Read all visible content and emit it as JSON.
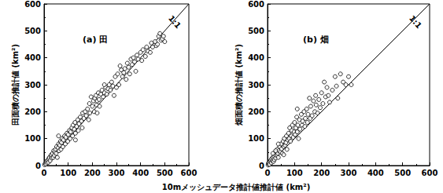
{
  "xlabel": "10mメッシュデータ推計値推計値 (km²)",
  "chart_data": [
    {
      "type": "scatter",
      "title": "(a) 田",
      "ylabel": "田面積の推計値 (km²)",
      "xlim": [
        0,
        600
      ],
      "xticks": [
        0,
        100,
        200,
        300,
        400,
        500,
        600
      ],
      "ylim": [
        0,
        600
      ],
      "yticks": [
        0,
        100,
        200,
        300,
        400,
        500,
        600
      ],
      "color": "#000000",
      "marker": "circle_open",
      "reference_line": {
        "label": "1:1",
        "x": [
          0,
          600
        ],
        "y": [
          0,
          600
        ]
      },
      "points": [
        [
          2,
          3
        ],
        [
          5,
          8
        ],
        [
          8,
          5
        ],
        [
          10,
          15
        ],
        [
          12,
          10
        ],
        [
          15,
          20
        ],
        [
          18,
          12
        ],
        [
          20,
          25
        ],
        [
          22,
          30
        ],
        [
          25,
          18
        ],
        [
          28,
          35
        ],
        [
          30,
          40
        ],
        [
          32,
          28
        ],
        [
          35,
          45
        ],
        [
          38,
          30
        ],
        [
          40,
          55
        ],
        [
          42,
          38
        ],
        [
          45,
          50
        ],
        [
          48,
          60
        ],
        [
          50,
          45
        ],
        [
          52,
          70
        ],
        [
          55,
          30
        ],
        [
          58,
          65
        ],
        [
          60,
          80
        ],
        [
          62,
          55
        ],
        [
          65,
          75
        ],
        [
          68,
          90
        ],
        [
          70,
          60
        ],
        [
          72,
          85
        ],
        [
          75,
          100
        ],
        [
          78,
          70
        ],
        [
          80,
          95
        ],
        [
          85,
          110
        ],
        [
          88,
          80
        ],
        [
          90,
          105
        ],
        [
          95,
          120
        ],
        [
          98,
          90
        ],
        [
          100,
          115
        ],
        [
          105,
          130
        ],
        [
          108,
          100
        ],
        [
          110,
          125
        ],
        [
          115,
          140
        ],
        [
          118,
          110
        ],
        [
          120,
          150
        ],
        [
          125,
          135
        ],
        [
          128,
          160
        ],
        [
          130,
          120
        ],
        [
          135,
          145
        ],
        [
          140,
          170
        ],
        [
          142,
          130
        ],
        [
          145,
          155
        ],
        [
          150,
          180
        ],
        [
          155,
          165
        ],
        [
          158,
          140
        ],
        [
          160,
          195
        ],
        [
          165,
          175
        ],
        [
          170,
          200
        ],
        [
          175,
          185
        ],
        [
          180,
          210
        ],
        [
          185,
          170
        ],
        [
          188,
          230
        ],
        [
          190,
          195
        ],
        [
          195,
          255
        ],
        [
          200,
          220
        ],
        [
          205,
          240
        ],
        [
          208,
          200
        ],
        [
          210,
          250
        ],
        [
          215,
          260
        ],
        [
          218,
          225
        ],
        [
          220,
          240
        ],
        [
          225,
          270
        ],
        [
          228,
          245
        ],
        [
          230,
          220
        ],
        [
          235,
          265
        ],
        [
          240,
          280
        ],
        [
          245,
          255
        ],
        [
          250,
          270
        ],
        [
          255,
          290
        ],
        [
          260,
          265
        ],
        [
          265,
          285
        ],
        [
          270,
          300
        ],
        [
          275,
          280
        ],
        [
          280,
          310
        ],
        [
          285,
          295
        ],
        [
          290,
          260
        ],
        [
          295,
          330
        ],
        [
          300,
          290
        ],
        [
          305,
          340
        ],
        [
          310,
          300
        ],
        [
          315,
          370
        ],
        [
          320,
          355
        ],
        [
          325,
          330
        ],
        [
          330,
          345
        ],
        [
          335,
          360
        ],
        [
          340,
          320
        ],
        [
          345,
          380
        ],
        [
          350,
          365
        ],
        [
          355,
          340
        ],
        [
          360,
          395
        ],
        [
          365,
          375
        ],
        [
          370,
          400
        ],
        [
          375,
          385
        ],
        [
          380,
          350
        ],
        [
          385,
          410
        ],
        [
          390,
          395
        ],
        [
          400,
          420
        ],
        [
          405,
          390
        ],
        [
          410,
          430
        ],
        [
          420,
          405
        ],
        [
          425,
          440
        ],
        [
          430,
          425
        ],
        [
          440,
          420
        ],
        [
          445,
          455
        ],
        [
          450,
          440
        ],
        [
          460,
          460
        ],
        [
          465,
          445
        ],
        [
          470,
          450
        ],
        [
          475,
          480
        ],
        [
          480,
          490
        ],
        [
          485,
          465
        ],
        [
          490,
          470
        ],
        [
          495,
          480
        ],
        [
          500,
          460
        ],
        [
          130,
          95
        ],
        [
          60,
          110
        ],
        [
          220,
          195
        ],
        [
          250,
          300
        ]
      ]
    },
    {
      "type": "scatter",
      "title": "(b) 畑",
      "ylabel": "畑面積の推計値 (km²)",
      "xlim": [
        0,
        600
      ],
      "xticks": [
        0,
        100,
        200,
        300,
        400,
        500,
        600
      ],
      "ylim": [
        0,
        600
      ],
      "yticks": [
        0,
        100,
        200,
        300,
        400,
        500,
        600
      ],
      "color": "#000000",
      "marker": "circle_open",
      "reference_line": {
        "label": "1:1",
        "x": [
          0,
          600
        ],
        "y": [
          0,
          600
        ]
      },
      "points": [
        [
          2,
          2
        ],
        [
          3,
          8
        ],
        [
          5,
          5
        ],
        [
          6,
          12
        ],
        [
          8,
          4
        ],
        [
          10,
          15
        ],
        [
          12,
          20
        ],
        [
          14,
          10
        ],
        [
          15,
          25
        ],
        [
          18,
          18
        ],
        [
          20,
          30
        ],
        [
          22,
          15
        ],
        [
          24,
          35
        ],
        [
          25,
          22
        ],
        [
          28,
          40
        ],
        [
          30,
          28
        ],
        [
          32,
          50
        ],
        [
          35,
          38
        ],
        [
          36,
          60
        ],
        [
          38,
          45
        ],
        [
          40,
          30
        ],
        [
          42,
          55
        ],
        [
          45,
          70
        ],
        [
          48,
          50
        ],
        [
          50,
          80
        ],
        [
          52,
          62
        ],
        [
          55,
          45
        ],
        [
          58,
          90
        ],
        [
          60,
          70
        ],
        [
          62,
          100
        ],
        [
          65,
          75
        ],
        [
          68,
          85
        ],
        [
          70,
          110
        ],
        [
          72,
          60
        ],
        [
          75,
          95
        ],
        [
          78,
          120
        ],
        [
          80,
          100
        ],
        [
          82,
          140
        ],
        [
          85,
          90
        ],
        [
          88,
          110
        ],
        [
          90,
          130
        ],
        [
          92,
          150
        ],
        [
          95,
          105
        ],
        [
          98,
          125
        ],
        [
          100,
          160
        ],
        [
          102,
          115
        ],
        [
          105,
          140
        ],
        [
          108,
          180
        ],
        [
          110,
          125
        ],
        [
          112,
          150
        ],
        [
          115,
          100
        ],
        [
          118,
          170
        ],
        [
          120,
          135
        ],
        [
          125,
          190
        ],
        [
          128,
          150
        ],
        [
          130,
          165
        ],
        [
          135,
          200
        ],
        [
          138,
          145
        ],
        [
          140,
          175
        ],
        [
          145,
          210
        ],
        [
          148,
          160
        ],
        [
          150,
          190
        ],
        [
          155,
          250
        ],
        [
          158,
          175
        ],
        [
          160,
          220
        ],
        [
          165,
          185
        ],
        [
          170,
          240
        ],
        [
          175,
          200
        ],
        [
          178,
          260
        ],
        [
          180,
          225
        ],
        [
          185,
          195
        ],
        [
          190,
          245
        ],
        [
          195,
          215
        ],
        [
          200,
          270
        ],
        [
          205,
          230
        ],
        [
          210,
          310
        ],
        [
          215,
          255
        ],
        [
          220,
          290
        ],
        [
          225,
          260
        ],
        [
          230,
          235
        ],
        [
          240,
          280
        ],
        [
          250,
          330
        ],
        [
          255,
          295
        ],
        [
          260,
          250
        ],
        [
          270,
          340
        ],
        [
          280,
          310
        ],
        [
          290,
          300
        ],
        [
          300,
          330
        ],
        [
          310,
          300
        ],
        [
          20,
          45
        ],
        [
          30,
          55
        ],
        [
          40,
          80
        ],
        [
          60,
          40
        ],
        [
          110,
          210
        ]
      ]
    }
  ]
}
